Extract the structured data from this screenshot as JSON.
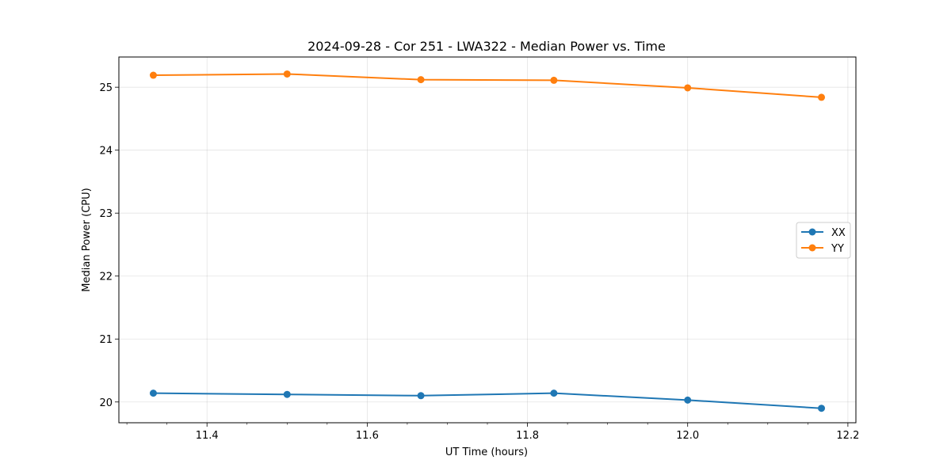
{
  "chart_data": {
    "type": "line",
    "title": "2024-09-28 - Cor 251 - LWA322 - Median Power vs. Time",
    "xlabel": "UT Time (hours)",
    "ylabel": "Median Power (CPU)",
    "x": [
      11.333,
      11.5,
      11.667,
      11.833,
      12.0,
      12.167
    ],
    "xlim": [
      11.29,
      12.21
    ],
    "ylim": [
      19.67,
      25.48
    ],
    "xticks": [
      11.4,
      11.6,
      11.8,
      12.0,
      12.2
    ],
    "xtick_labels": [
      "11.4",
      "11.6",
      "11.8",
      "12.0",
      "12.2"
    ],
    "x_minor_step": 0.05,
    "yticks": [
      20,
      21,
      22,
      23,
      24,
      25
    ],
    "ytick_labels": [
      "20",
      "21",
      "22",
      "23",
      "24",
      "25"
    ],
    "grid": true,
    "legend_position": "center-right",
    "series": [
      {
        "name": "XX",
        "color": "#1f77b4",
        "values": [
          20.14,
          20.12,
          20.1,
          20.14,
          20.03,
          19.9
        ]
      },
      {
        "name": "YY",
        "color": "#ff7f0e",
        "values": [
          25.19,
          25.21,
          25.12,
          25.11,
          24.99,
          24.84
        ]
      }
    ]
  }
}
